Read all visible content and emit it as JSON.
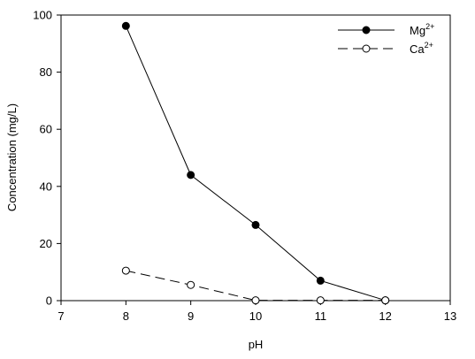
{
  "chart_data": {
    "type": "line",
    "xlabel": "pH",
    "ylabel": "Concentration (mg/L)",
    "xlim": [
      7,
      13
    ],
    "ylim": [
      0,
      100
    ],
    "xticks": [
      "7",
      "8",
      "9",
      "10",
      "11",
      "12",
      "13"
    ],
    "yticks": [
      "0",
      "20",
      "40",
      "60",
      "80",
      "100"
    ],
    "grid": false,
    "legend_position": "top-right",
    "series": [
      {
        "name_base": "Mg",
        "name_sup": "2+",
        "marker": "filled-circle",
        "line_style": "solid",
        "x": [
          8,
          9,
          10,
          11,
          12
        ],
        "y": [
          96.2,
          44.0,
          26.5,
          7.0,
          0.1
        ]
      },
      {
        "name_base": "Ca",
        "name_sup": "2+",
        "marker": "open-circle",
        "line_style": "dashed",
        "x": [
          8,
          9,
          10,
          11,
          12
        ],
        "y": [
          10.5,
          5.5,
          0.1,
          0.1,
          0.1
        ]
      }
    ]
  }
}
